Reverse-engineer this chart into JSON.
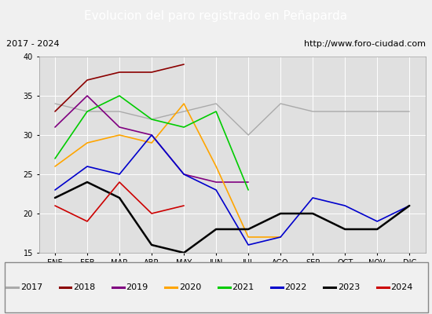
{
  "title": "Evolucion del paro registrado en Peñaparda",
  "subtitle_left": "2017 - 2024",
  "subtitle_right": "http://www.foro-ciudad.com",
  "months": [
    "ENE",
    "FEB",
    "MAR",
    "ABR",
    "MAY",
    "JUN",
    "JUL",
    "AGO",
    "SEP",
    "OCT",
    "NOV",
    "DIC"
  ],
  "ylim": [
    15,
    40
  ],
  "yticks": [
    15,
    20,
    25,
    30,
    35,
    40
  ],
  "series": {
    "2017": {
      "color": "#aaaaaa",
      "linewidth": 1.0,
      "data": [
        34,
        33,
        33,
        32,
        33,
        34,
        30,
        34,
        33,
        33,
        33,
        33
      ]
    },
    "2018": {
      "color": "#8b0000",
      "linewidth": 1.2,
      "data": [
        33,
        37,
        38,
        38,
        39,
        null,
        null,
        null,
        null,
        null,
        null,
        null
      ]
    },
    "2019": {
      "color": "#800080",
      "linewidth": 1.2,
      "data": [
        31,
        35,
        31,
        30,
        25,
        24,
        24,
        null,
        null,
        null,
        null,
        null
      ]
    },
    "2020": {
      "color": "#ffa500",
      "linewidth": 1.2,
      "data": [
        26,
        29,
        30,
        29,
        34,
        26,
        17,
        17,
        null,
        null,
        null,
        null
      ]
    },
    "2021": {
      "color": "#00cc00",
      "linewidth": 1.2,
      "data": [
        27,
        33,
        35,
        32,
        31,
        33,
        23,
        null,
        null,
        null,
        null,
        null
      ]
    },
    "2022": {
      "color": "#0000cc",
      "linewidth": 1.2,
      "data": [
        23,
        26,
        25,
        30,
        25,
        23,
        16,
        17,
        22,
        21,
        19,
        21
      ]
    },
    "2023": {
      "color": "#000000",
      "linewidth": 1.8,
      "data": [
        22,
        24,
        22,
        16,
        15,
        18,
        18,
        20,
        20,
        18,
        18,
        21
      ]
    },
    "2024": {
      "color": "#cc0000",
      "linewidth": 1.2,
      "data": [
        21,
        19,
        24,
        20,
        21,
        null,
        null,
        null,
        null,
        null,
        null,
        null
      ]
    }
  },
  "legend_order": [
    "2017",
    "2018",
    "2019",
    "2020",
    "2021",
    "2022",
    "2023",
    "2024"
  ],
  "bg_color": "#f0f0f0",
  "plot_bg_color": "#e0e0e0",
  "title_bg_color": "#4472c4",
  "title_text_color": "#ffffff",
  "subtitle_bg_color": "#d0d0d0",
  "subtitle_text_color": "#000000",
  "title_fontsize": 11,
  "subtitle_fontsize": 8,
  "tick_fontsize": 7,
  "legend_fontsize": 8
}
